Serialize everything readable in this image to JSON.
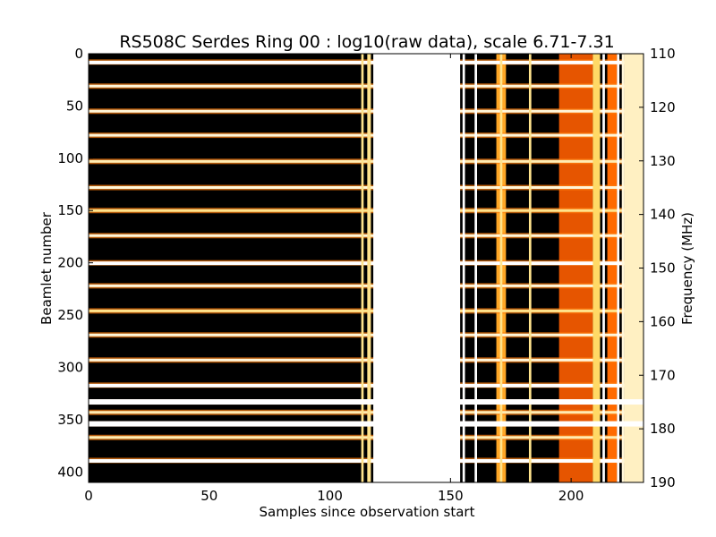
{
  "chart_data": {
    "type": "heatmap",
    "title": "RS508C Serdes Ring 00 : log10(raw data), scale 6.71-7.31",
    "xlabel": "Samples since observation start",
    "ylabel": "Beamlet number",
    "ylabel_right": "Frequency (MHz)",
    "xlim": [
      0,
      230
    ],
    "ylim": [
      0,
      410
    ],
    "ylim_right": [
      110,
      190
    ],
    "color_scale": [
      6.71,
      7.31
    ],
    "colormap": [
      "#000000",
      "#800000",
      "#ff6a00",
      "#ffd040",
      "#ffffff"
    ],
    "x_ticks": [
      "0",
      "50",
      "100",
      "150",
      "200"
    ],
    "y_ticks": [
      "0",
      "50",
      "100",
      "150",
      "200",
      "250",
      "300",
      "350",
      "400"
    ],
    "y_right_ticks": [
      "110",
      "120",
      "130",
      "140",
      "150",
      "160",
      "170",
      "180",
      "190"
    ],
    "row_features": [
      {
        "beamlet": 8,
        "level": 1.0
      },
      {
        "beamlet": 31,
        "level": 0.95
      },
      {
        "beamlet": 55,
        "level": 0.95
      },
      {
        "beamlet": 78,
        "level": 0.95
      },
      {
        "beamlet": 103,
        "level": 0.9
      },
      {
        "beamlet": 128,
        "level": 0.95
      },
      {
        "beamlet": 150,
        "level": 0.85
      },
      {
        "beamlet": 174,
        "level": 0.95
      },
      {
        "beamlet": 200,
        "level": 1.0
      },
      {
        "beamlet": 222,
        "level": 0.95
      },
      {
        "beamlet": 246,
        "level": 0.85
      },
      {
        "beamlet": 269,
        "level": 0.95
      },
      {
        "beamlet": 293,
        "level": 0.95
      },
      {
        "beamlet": 317,
        "level": 1.0
      },
      {
        "beamlet": 333,
        "level": 1.0
      },
      {
        "beamlet": 343,
        "level": 0.9
      },
      {
        "beamlet": 354,
        "level": 1.0
      },
      {
        "beamlet": 367,
        "level": 0.9
      },
      {
        "beamlet": 389,
        "level": 1.0
      }
    ],
    "column_features": [
      {
        "start": 113,
        "end": 114,
        "level": 0.85
      },
      {
        "start": 115.5,
        "end": 117,
        "level": 0.85
      },
      {
        "start": 118,
        "end": 154,
        "level": 1.0
      },
      {
        "start": 155,
        "end": 156,
        "level": 1.0
      },
      {
        "start": 160,
        "end": 161,
        "level": 1.0
      },
      {
        "start": 169,
        "end": 173,
        "level": 0.65
      },
      {
        "start": 170.5,
        "end": 171.5,
        "level": 0.85
      },
      {
        "start": 182.5,
        "end": 183.5,
        "level": 0.85
      },
      {
        "start": 195,
        "end": 209,
        "level": 0.45
      },
      {
        "start": 209,
        "end": 212,
        "level": 0.8
      },
      {
        "start": 213,
        "end": 214,
        "level": 1.0
      },
      {
        "start": 215,
        "end": 219,
        "level": 0.5
      },
      {
        "start": 219,
        "end": 220,
        "level": 1.0
      },
      {
        "start": 221,
        "end": 222,
        "level": 0.95
      },
      {
        "start": 222,
        "end": 230,
        "level": 0.92
      }
    ]
  }
}
